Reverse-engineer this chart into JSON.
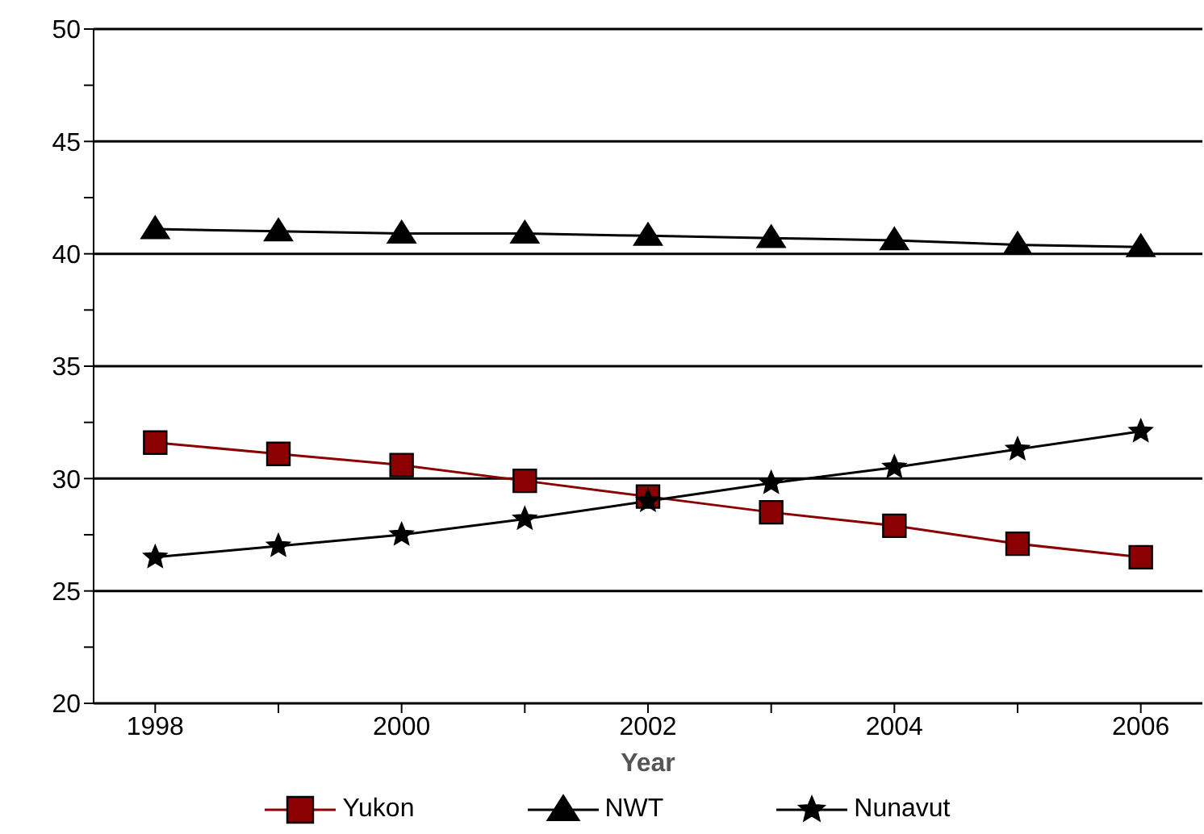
{
  "chart_data": {
    "type": "line",
    "xlabel": "Year",
    "x": [
      1998,
      1999,
      2000,
      2001,
      2002,
      2003,
      2004,
      2005,
      2006
    ],
    "series": [
      {
        "name": "Yukon",
        "color": "#8b0000",
        "marker": "square",
        "values": [
          31.6,
          31.1,
          30.6,
          29.9,
          29.2,
          28.5,
          27.9,
          27.1,
          26.5
        ]
      },
      {
        "name": "NWT",
        "color": "#000000",
        "marker": "triangle",
        "values": [
          41.1,
          41.0,
          40.9,
          40.9,
          40.8,
          40.7,
          40.6,
          40.4,
          40.3
        ]
      },
      {
        "name": "Nunavut",
        "color": "#000000",
        "marker": "star",
        "values": [
          26.5,
          27.0,
          27.5,
          28.2,
          29.0,
          29.8,
          30.5,
          31.3,
          32.1
        ]
      }
    ],
    "xlim": [
      1997.5,
      2006.5
    ],
    "xticks": [
      1998,
      {
        "value": 1999,
        "label": null
      },
      2000,
      {
        "value": 2001,
        "label": null
      },
      2002,
      {
        "value": 2003,
        "label": null
      },
      2004,
      {
        "value": 2005,
        "label": null
      },
      2006
    ],
    "ylim": [
      20,
      50
    ],
    "yticks": [
      20,
      {
        "value": 22.5,
        "label": null
      },
      25,
      {
        "value": 27.5,
        "label": null
      },
      30,
      {
        "value": 32.5,
        "label": null
      },
      35,
      {
        "value": 37.5,
        "label": null
      },
      40,
      {
        "value": 42.5,
        "label": null
      },
      45,
      {
        "value": 47.5,
        "label": null
      },
      50
    ],
    "grid": "y",
    "legend": "bottom",
    "line_style": "solid"
  }
}
